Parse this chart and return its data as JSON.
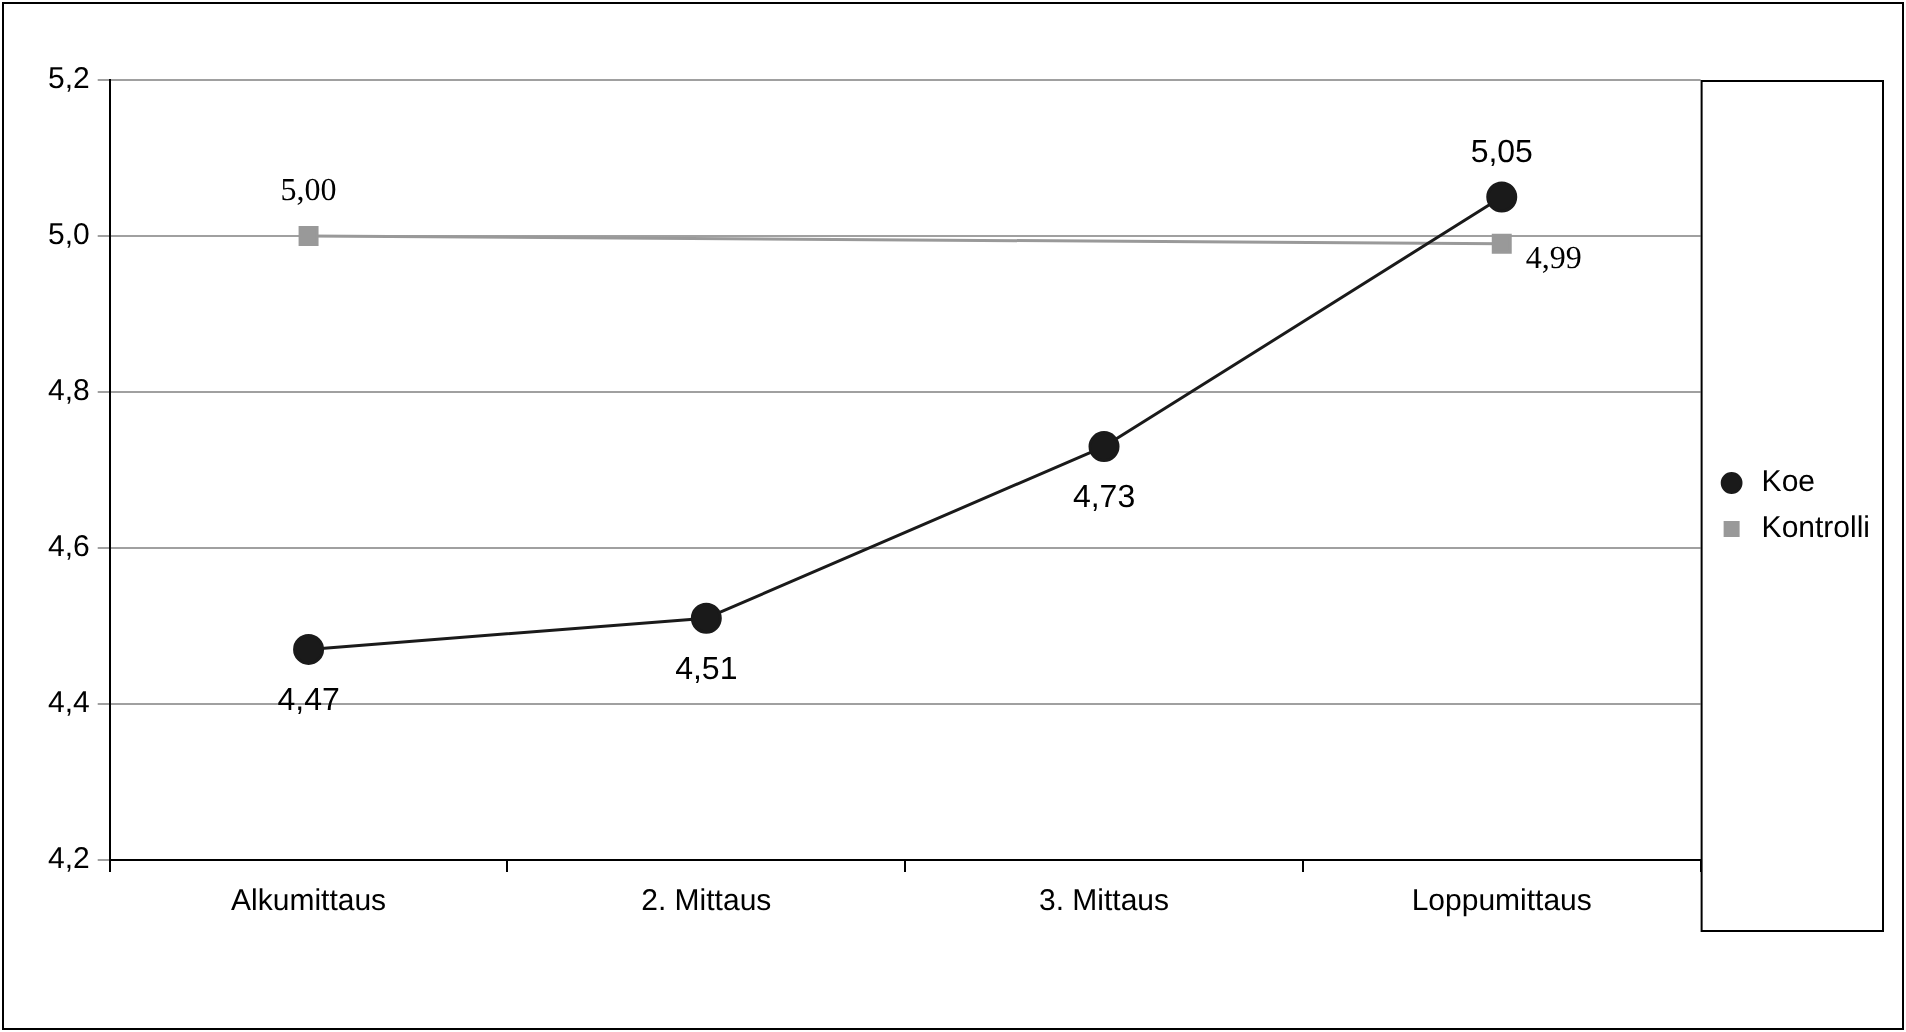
{
  "chart_data": {
    "type": "line",
    "categories": [
      "Alkumittaus",
      "2. Mittaus",
      "3. Mittaus",
      "Loppumittaus"
    ],
    "series": [
      {
        "name": "Koe",
        "color": "#1a1a1a",
        "marker": "circle",
        "values": [
          4.47,
          4.51,
          4.73,
          5.05
        ],
        "value_labels": [
          "4,47",
          "4,51",
          "4,73",
          "5,05"
        ]
      },
      {
        "name": "Kontrolli",
        "color": "#999999",
        "marker": "square",
        "values": [
          5.0,
          null,
          null,
          4.99
        ],
        "value_labels": [
          "5,00",
          null,
          null,
          "4,99"
        ]
      }
    ],
    "ylim": [
      4.2,
      5.2
    ],
    "yticks": [
      {
        "value": 4.2,
        "label": "4,2"
      },
      {
        "value": 4.4,
        "label": "4,4"
      },
      {
        "value": 4.6,
        "label": "4,6"
      },
      {
        "value": 4.8,
        "label": "4,8"
      },
      {
        "value": 5.0,
        "label": "5,0"
      },
      {
        "value": 5.2,
        "label": "5,2"
      }
    ],
    "grid": "y",
    "legend": "right",
    "line_style": "solid"
  }
}
